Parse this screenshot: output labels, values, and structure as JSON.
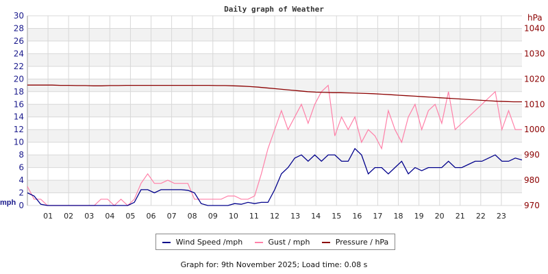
{
  "chart_data": {
    "type": "line",
    "title": "Daily graph of Weather",
    "ylabel": "mph",
    "y2label": "hPa",
    "ylim": [
      0,
      30
    ],
    "y2lim": [
      970,
      1045
    ],
    "yticks": [
      "0",
      "2",
      "4",
      "6",
      "8",
      "10",
      "12",
      "14",
      "16",
      "18",
      "20",
      "22",
      "24",
      "26",
      "28",
      "30"
    ],
    "y2ticks": [
      "970",
      "980",
      "990",
      "1000",
      "1010",
      "1020",
      "1030",
      "1040"
    ],
    "xticks": [
      "01",
      "02",
      "03",
      "04",
      "05",
      "06",
      "07",
      "08",
      "09",
      "10",
      "11",
      "12",
      "13",
      "14",
      "15",
      "16",
      "17",
      "18",
      "19",
      "20",
      "21",
      "22",
      "23"
    ],
    "xlim": [
      0,
      24
    ],
    "x_step_hours": 0.5,
    "series": [
      {
        "name": "Wind Speed /mph",
        "color": "#00008b",
        "axis": "left",
        "values": [
          2,
          1.5,
          0.2,
          0,
          0,
          0,
          0,
          0,
          0,
          0,
          0,
          0,
          0,
          0,
          0,
          0,
          0.5,
          2.5,
          2.5,
          2,
          2.5,
          2.5,
          2.5,
          2.5,
          2.4,
          2,
          0.3,
          0,
          0,
          0,
          0,
          0.3,
          0.2,
          0.5,
          0.3,
          0.5,
          0.5,
          2.5,
          5,
          6,
          7.5,
          8,
          7,
          8,
          7,
          8,
          8,
          7,
          7,
          9,
          8,
          5,
          6,
          6,
          5,
          6,
          7,
          5,
          6,
          5.5,
          6,
          6,
          6,
          7,
          6,
          6,
          6.5,
          7,
          7,
          7.5,
          8,
          7,
          7,
          7.5,
          7.2
        ]
      },
      {
        "name": "Gust / mph",
        "color": "#ff80a8",
        "axis": "left",
        "values": [
          3,
          1,
          1,
          0,
          0,
          0,
          0,
          0,
          0,
          0,
          0,
          1,
          1,
          0,
          1,
          0,
          1,
          3.5,
          5,
          3.5,
          3.5,
          4,
          3.5,
          3.5,
          3.5,
          1,
          1,
          1,
          1,
          1,
          1.5,
          1.5,
          1,
          1,
          1.5,
          5,
          9,
          12,
          15,
          12,
          14,
          16,
          13,
          16,
          18,
          19,
          11,
          14,
          12,
          14,
          10,
          12,
          11,
          9,
          15,
          12,
          10,
          14,
          16,
          12,
          15,
          16,
          13,
          18,
          12,
          13,
          14,
          15,
          16,
          17,
          18,
          12,
          15,
          12,
          12
        ]
      },
      {
        "name": "Pressure / hPa",
        "color": "#8b0000",
        "axis": "right",
        "values": [
          1017.6,
          1017.6,
          1017.6,
          1017.6,
          1017.5,
          1017.5,
          1017.4,
          1017.4,
          1017.3,
          1017.3,
          1017.4,
          1017.4,
          1017.5,
          1017.5,
          1017.5,
          1017.5,
          1017.5,
          1017.5,
          1017.5,
          1017.5,
          1017.5,
          1017.5,
          1017.5,
          1017.4,
          1017.4,
          1017.3,
          1017.2,
          1017.0,
          1016.8,
          1016.5,
          1016.2,
          1015.9,
          1015.6,
          1015.3,
          1015.0,
          1014.8,
          1014.7,
          1014.6,
          1014.6,
          1014.5,
          1014.4,
          1014.3,
          1014.2,
          1014.0,
          1013.8,
          1013.6,
          1013.4,
          1013.2,
          1013.0,
          1012.8,
          1012.6,
          1012.4,
          1012.2,
          1012.0,
          1011.8,
          1011.6,
          1011.4,
          1011.2,
          1011.1,
          1011.0,
          1011.0
        ]
      }
    ]
  },
  "legend": [
    "Wind Speed /mph",
    "Gust / mph",
    "Pressure / hPa"
  ],
  "footer": "Graph for: 9th November 2025; Load time: 0.08 s"
}
